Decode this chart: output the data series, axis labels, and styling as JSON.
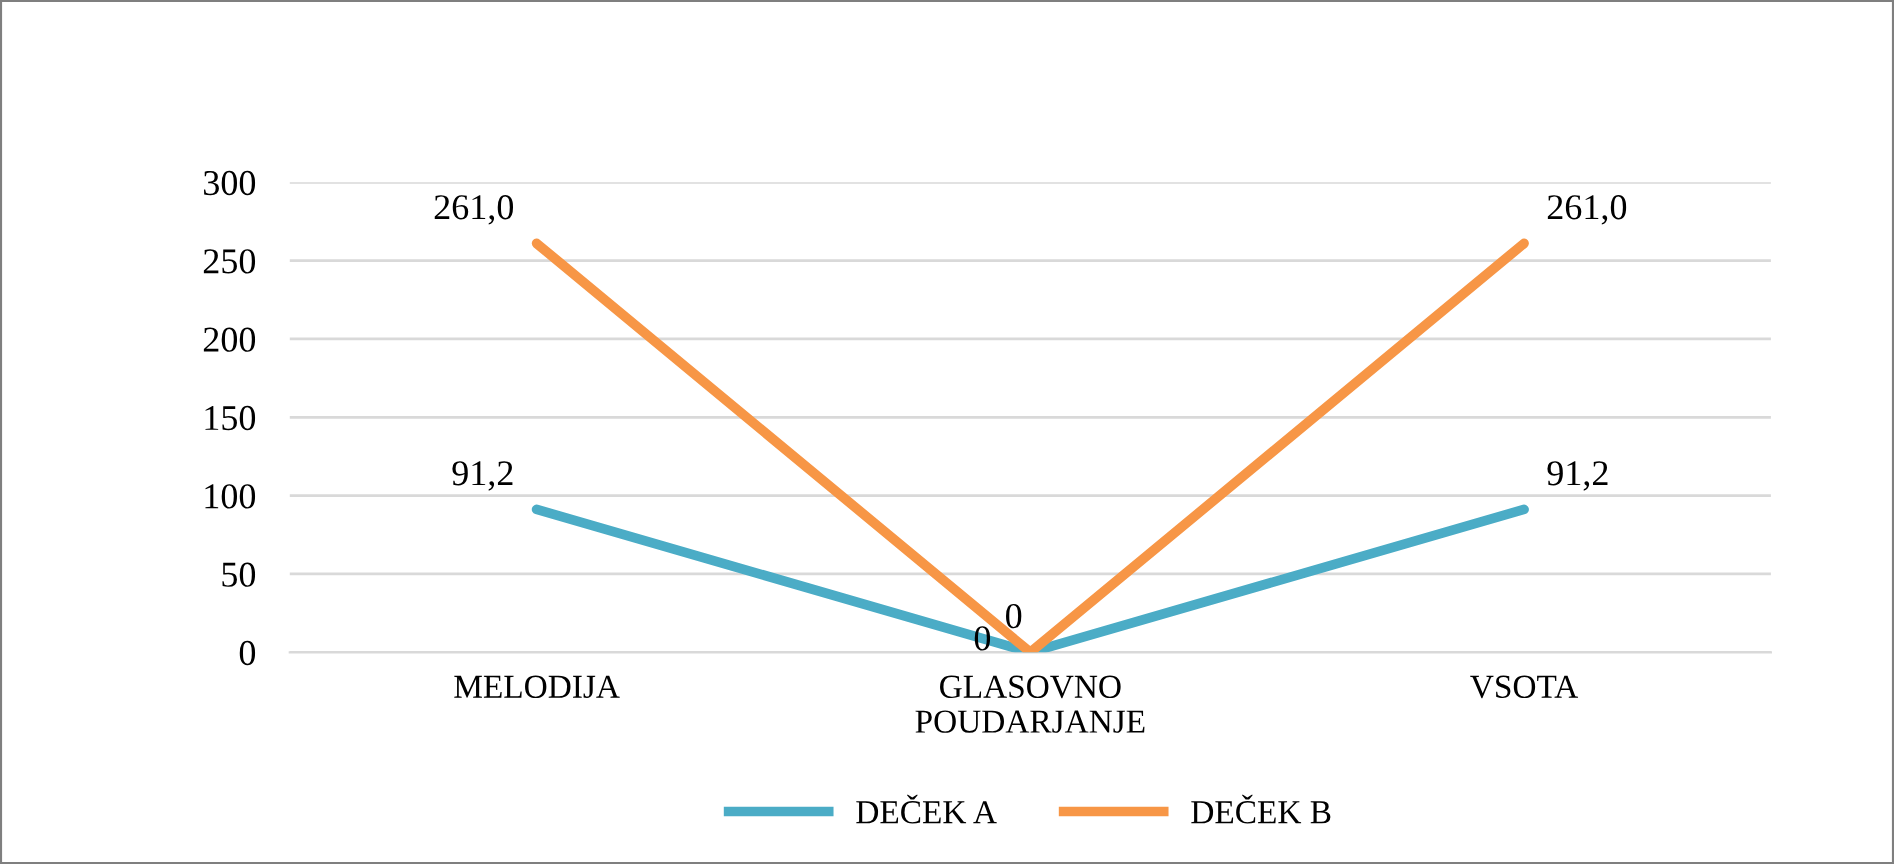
{
  "chart_data": {
    "type": "line",
    "categories": [
      "MELODIJA",
      "GLASOVNO\nPOUDARJANJE",
      "VSOTA"
    ],
    "series": [
      {
        "name": "DEČEK A",
        "color": "#4bacc6",
        "values": [
          91.2,
          0,
          91.2
        ],
        "value_labels": [
          "91,2",
          "0",
          "91,2"
        ]
      },
      {
        "name": "DEČEK B",
        "color": "#f79646",
        "values": [
          261.0,
          0,
          261.0
        ],
        "value_labels": [
          "261,0",
          "0",
          "261,0"
        ]
      }
    ],
    "ylim": [
      0,
      300
    ],
    "yticks": [
      0,
      50,
      100,
      150,
      200,
      250,
      300
    ],
    "grid": "y",
    "legend": "bottom",
    "marker": "none",
    "line_style": "solid"
  }
}
